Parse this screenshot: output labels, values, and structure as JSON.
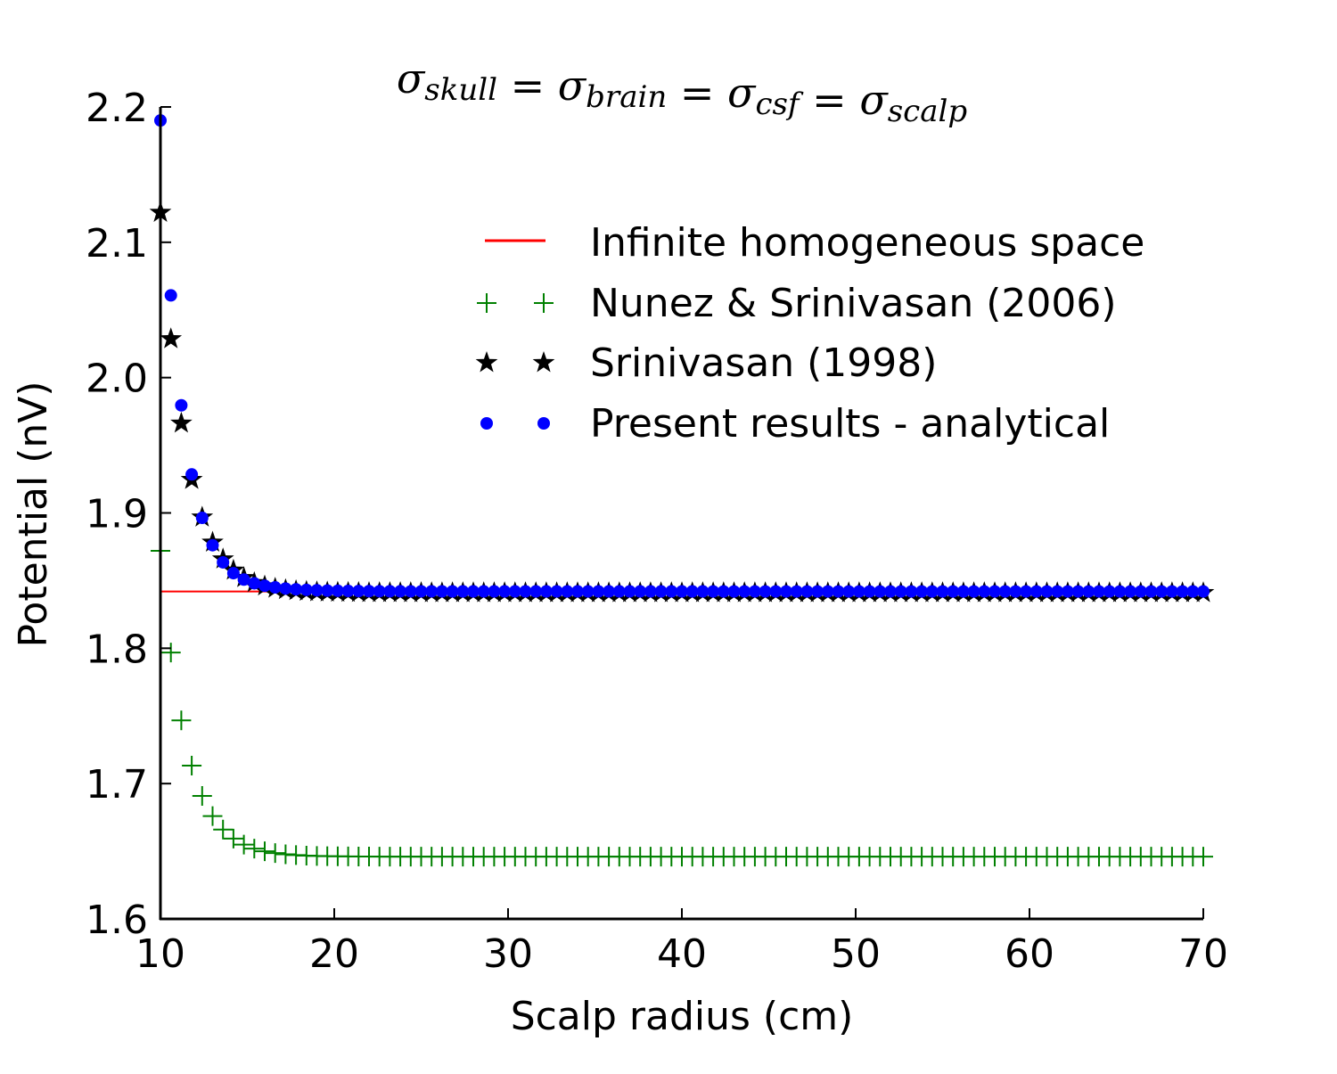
{
  "chart_data": {
    "type": "scatter",
    "title": "σ_skull = σ_brain = σ_csf = σ_scalp",
    "title_parts": [
      {
        "sym": "σ",
        "sub": "skull"
      },
      {
        "sym": "σ",
        "sub": "brain"
      },
      {
        "sym": "σ",
        "sub": "csf"
      },
      {
        "sym": "σ",
        "sub": "scalp"
      }
    ],
    "xlabel": "Scalp radius (cm)",
    "ylabel": "Potential (nV)",
    "xlim": [
      10,
      70
    ],
    "ylim": [
      1.6,
      2.2
    ],
    "xticks": [
      "10",
      "20",
      "30",
      "40",
      "50",
      "60",
      "70"
    ],
    "yticks": [
      "1.6",
      "1.7",
      "1.8",
      "1.9",
      "2.0",
      "2.1",
      "2.2"
    ],
    "grid": false,
    "legend_position": "upper-right",
    "x_sampling": {
      "start": 10,
      "stop": 70,
      "count": 101
    },
    "series": [
      {
        "name": "Infinite homogeneous space",
        "marker": "line",
        "color": "#ff0000",
        "x": [
          10,
          70
        ],
        "y": [
          1.842,
          1.842
        ]
      },
      {
        "name": "Nunez & Srinivasan (2006)",
        "marker": "plus",
        "color": "#008000",
        "model": {
          "asymptote": 1.646,
          "amplitude": 0.226,
          "exponent": 2.7
        }
      },
      {
        "name": "Srinivasan (1998)",
        "marker": "star",
        "color": "#000000",
        "model": {
          "asymptote": 1.841,
          "amplitude": 0.281,
          "exponent": 2.7
        }
      },
      {
        "name": "Present results - analytical",
        "marker": "dot",
        "color": "#0000ff",
        "model": {
          "asymptote": 1.842,
          "amplitude": 0.348,
          "exponent": 2.35
        }
      }
    ]
  }
}
